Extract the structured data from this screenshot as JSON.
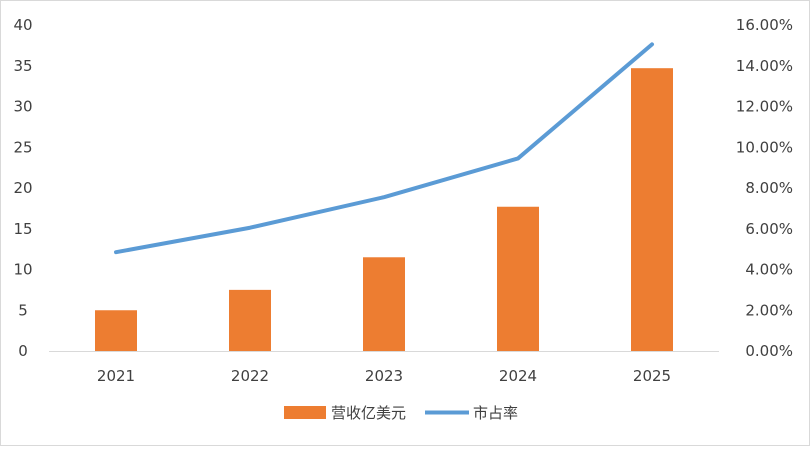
{
  "chart_data": {
    "type": "bar",
    "categories": [
      "2021",
      "2022",
      "2023",
      "2024",
      "2025"
    ],
    "series": [
      {
        "name": "营收亿美元",
        "type": "bar",
        "axis": "left",
        "color": "#ED7D31",
        "values": [
          5.0,
          7.5,
          11.5,
          17.7,
          34.7
        ]
      },
      {
        "name": "市占率",
        "type": "line",
        "axis": "right",
        "color": "#5B9BD5",
        "values": [
          4.85,
          6.05,
          7.55,
          9.45,
          15.05
        ]
      }
    ],
    "y_left": {
      "range": [
        0,
        40
      ],
      "ticks": [
        "0",
        "5",
        "10",
        "15",
        "20",
        "25",
        "30",
        "35",
        "40"
      ]
    },
    "y_right": {
      "range": [
        0,
        16
      ],
      "unit": "%",
      "ticks": [
        "0.00%",
        "2.00%",
        "4.00%",
        "6.00%",
        "8.00%",
        "10.00%",
        "12.00%",
        "14.00%",
        "16.00%"
      ]
    },
    "title": "",
    "xlabel": "",
    "ylabel": "",
    "grid": false,
    "legend_position": "bottom"
  }
}
